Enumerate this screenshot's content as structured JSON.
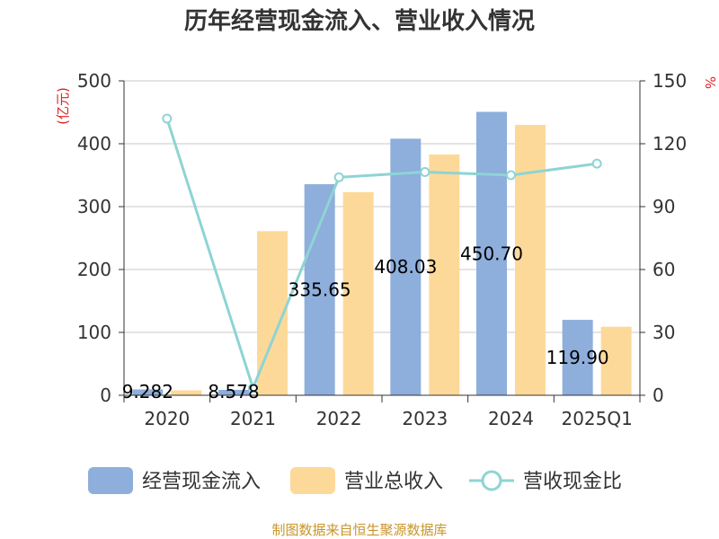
{
  "chart_data": {
    "type": "bar",
    "title": "历年经营现金流入、营业收入情况",
    "categories": [
      "2020",
      "2021",
      "2022",
      "2023",
      "2024",
      "2025Q1"
    ],
    "y_left": {
      "unit": "(亿元)",
      "ylim": [
        0,
        500
      ],
      "ticks": [
        "0",
        "100",
        "200",
        "300",
        "400",
        "500"
      ]
    },
    "y_right": {
      "unit": "%",
      "ylim": [
        0,
        150
      ],
      "ticks": [
        "0",
        "30",
        "60",
        "90",
        "120",
        "150"
      ]
    },
    "series": [
      {
        "name": "经营现金流入",
        "type": "bar",
        "axis": "left",
        "values": [
          9.282,
          8.578,
          335.65,
          408.03,
          450.7,
          119.9
        ],
        "labels": [
          "9.282",
          "8.578",
          "335.65",
          "408.03",
          "450.70",
          "119.90"
        ]
      },
      {
        "name": "营业总收入",
        "type": "bar",
        "axis": "left",
        "values": [
          7.8,
          261,
          323,
          383,
          430,
          109
        ]
      },
      {
        "name": "营收现金比",
        "type": "line",
        "axis": "right",
        "values": [
          132,
          3.5,
          104,
          106.5,
          105,
          110.5
        ]
      }
    ],
    "colors": {
      "bar1": "#8eaedb",
      "bar2": "#fdd999",
      "line": "#8ed4d4",
      "axis_unit": "#e02020"
    },
    "grid": true,
    "legend_position": "bottom"
  },
  "source": "制图数据来自恒生聚源数据库"
}
